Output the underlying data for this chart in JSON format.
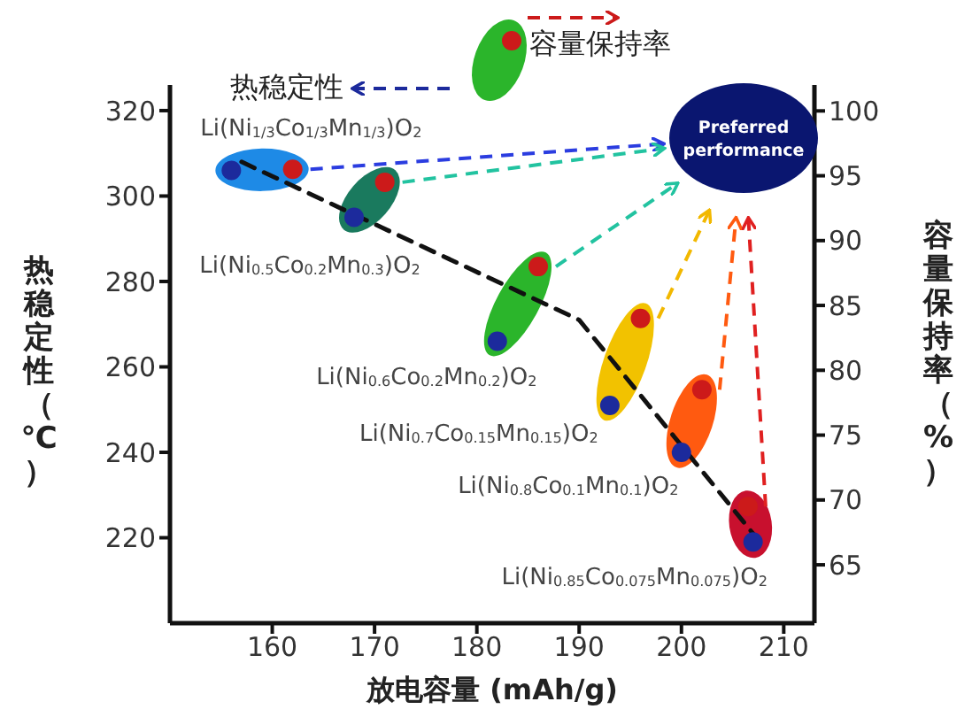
{
  "chart_data": {
    "type": "scatter",
    "xlabel": "放电容量 (mAh/g)",
    "ylabel": "热稳定性（℃）",
    "y2label": "容量保持率（%）",
    "xlim": [
      150,
      213
    ],
    "xticks": [
      160,
      170,
      180,
      190,
      200,
      210
    ],
    "ylim": [
      200,
      326
    ],
    "yticks": [
      220,
      240,
      260,
      280,
      300,
      320
    ],
    "y2lim": [
      60.5,
      102
    ],
    "y2ticks": [
      65,
      70,
      75,
      80,
      85,
      90,
      95,
      100
    ],
    "series": [
      {
        "name": "热稳定性",
        "color": "#1c2a9c",
        "x": [
          156,
          168,
          182,
          193,
          200,
          207
        ],
        "values": [
          306,
          295,
          266,
          251,
          240,
          219
        ]
      },
      {
        "name": "容量保持率",
        "color": "#cc1a1a",
        "axis": "y2",
        "x": [
          162,
          171,
          186,
          196,
          202,
          206.5
        ],
        "values": [
          95.5,
          94.5,
          88,
          84,
          78.5,
          69.5
        ]
      },
      {
        "type": "line",
        "color": "#111111",
        "line_style": "dashed",
        "marker": "none",
        "x": [
          157,
          190,
          207.5
        ],
        "values": [
          308,
          271,
          219.5
        ]
      }
    ],
    "annotations": [
      "Li(Ni$_{1/3}$Co$_{1/3}$Mn$_{1/3}$)O$_{2}$",
      "Li(Ni$_{0.5}$Co$_{0.2}$Mn$_{0.3}$)O$_{2}$",
      "Li(Ni$_{0.6}$Co$_{0.2}$Mn$_{0.2}$)O$_{2}$",
      "Li(Ni$_{0.7}$Co$_{0.15}$Mn$_{0.15}$)O$_{2}$",
      "Li(Ni$_{0.8}$Co$_{0.1}$Mn$_{0.1}$)O$_{2}$",
      "Li(Ni$_{0.85}$Co$_{0.075}$Mn$_{0.075}$)O$_{2}$",
      "Preferred performance"
    ],
    "legend": "top",
    "marker": "circle"
  }
}
